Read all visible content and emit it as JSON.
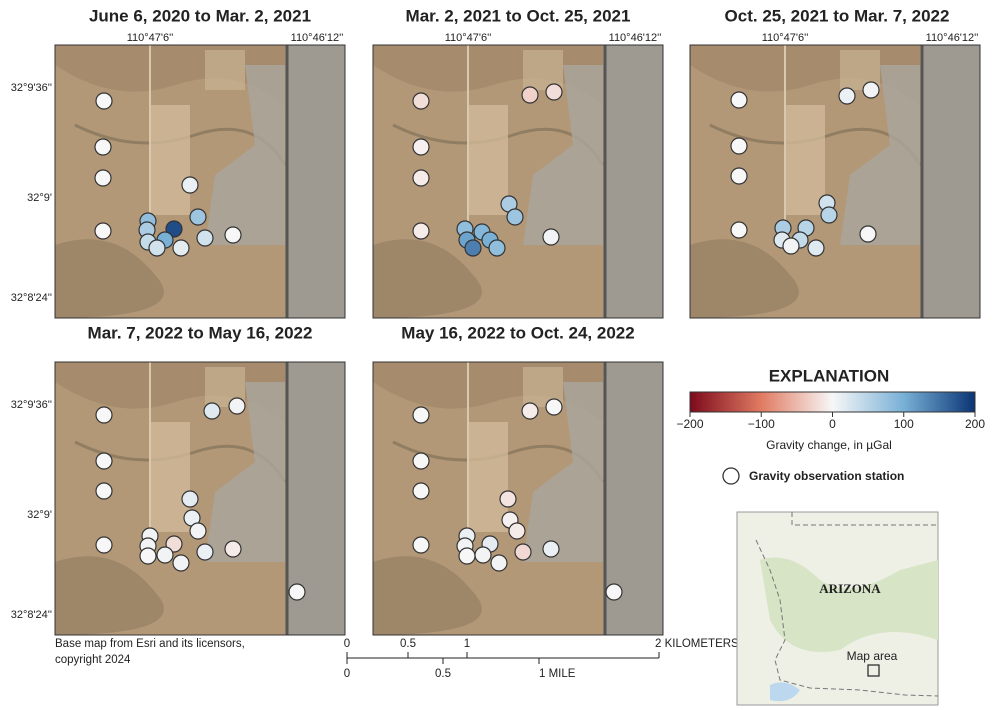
{
  "figure": {
    "panels": [
      {
        "title": "June 6, 2020 to Mar. 2, 2021",
        "values": [
          0,
          0,
          0,
          0,
          10,
          70,
          80,
          180,
          60,
          100,
          40,
          30,
          15,
          30,
          0
        ]
      },
      {
        "title": "Mar. 2, 2021 to Oct. 25, 2021",
        "values": [
          -20,
          -30,
          -20,
          -5,
          -10,
          60,
          70,
          -10,
          80,
          90,
          110,
          100,
          140,
          80,
          5
        ]
      },
      {
        "title": "Oct. 25, 2021 to Mar. 7, 2022",
        "values": [
          0,
          10,
          5,
          0,
          0,
          30,
          50,
          0,
          60,
          50,
          20,
          40,
          5,
          20,
          0
        ]
      },
      {
        "title": "Mar. 7, 2022 to May 16, 2022",
        "values": [
          0,
          20,
          5,
          0,
          0,
          15,
          10,
          0,
          5,
          5,
          -20,
          5,
          0,
          5,
          5,
          10,
          -10,
          0
        ]
      },
      {
        "title": "May 16, 2022 to Oct. 24, 2022",
        "values": [
          0,
          -10,
          0,
          0,
          0,
          -15,
          -5,
          0,
          10,
          5,
          15,
          -10,
          0,
          5,
          5,
          -25,
          10,
          0
        ]
      }
    ],
    "longitude_labels": [
      "110°47'6''",
      "110°46'12''"
    ],
    "latitude_labels": [
      "32°9'36''",
      "32°9'",
      "32°8'24''"
    ],
    "credit": [
      "Base map from Esri and its licensors,",
      "copyright 2024"
    ],
    "scale_bar": {
      "kilometers": [
        "0",
        "0.5",
        "1",
        "2 KILOMETERS"
      ],
      "miles": [
        "0",
        "0.5",
        "1 MILE"
      ]
    },
    "explanation": {
      "title": "EXPLANATION",
      "colorbar": {
        "range": [
          -200,
          200
        ],
        "colors": [
          "#7d0a1c",
          "#e07b62",
          "#f7f7f7",
          "#78b0d6",
          "#0a3474"
        ],
        "ticks": [
          {
            "value": -200,
            "label": "−200"
          },
          {
            "value": -100,
            "label": "−100"
          },
          0,
          100,
          200
        ],
        "label": "Gravity change, in µGal"
      },
      "station_label": "Gravity observation station"
    },
    "inset": {
      "state": "ARIZONA",
      "area_label": "Map area"
    }
  }
}
